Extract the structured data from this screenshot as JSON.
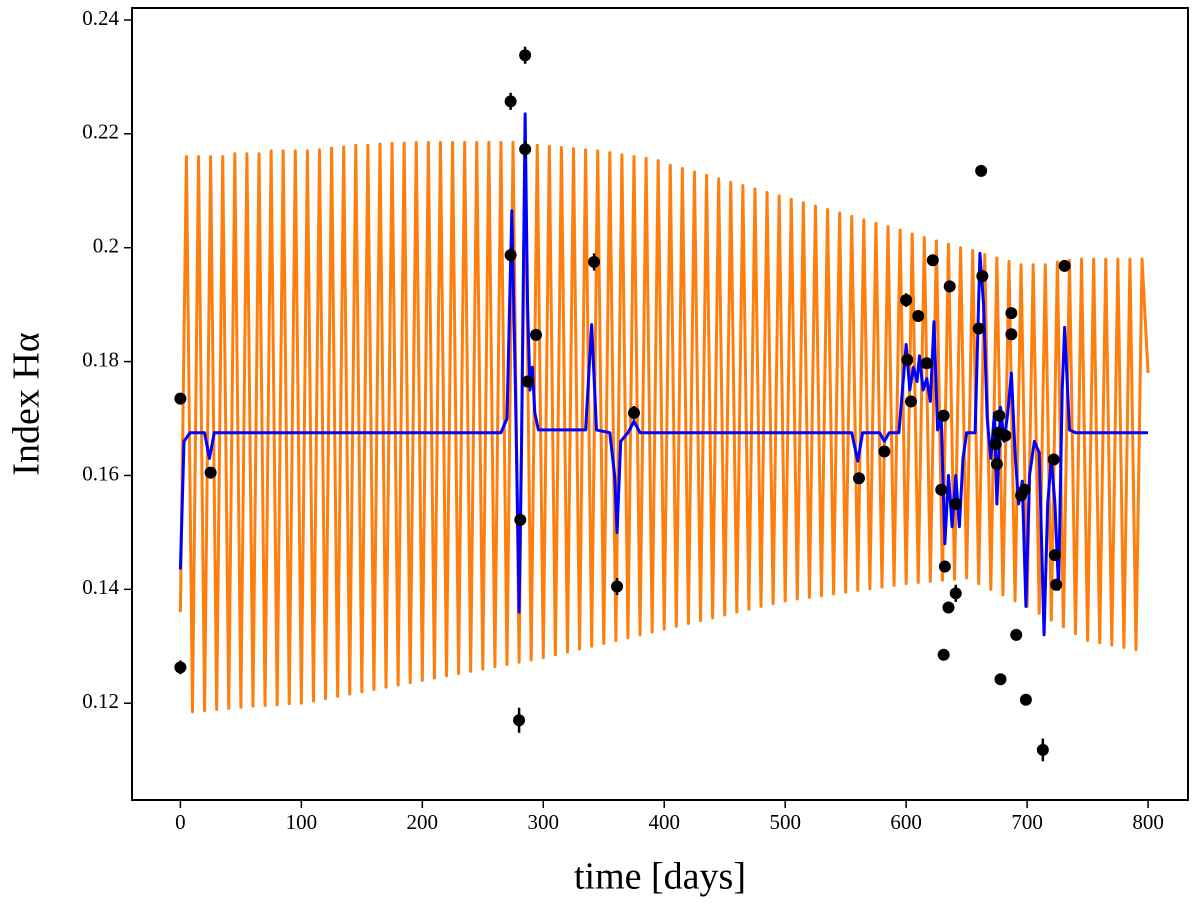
{
  "chart_data": {
    "type": "line",
    "xlabel": "time [days]",
    "ylabel": "Index Hα",
    "xlim": [
      -40,
      833
    ],
    "ylim": [
      0.103,
      0.2421
    ],
    "xticks": [
      0,
      100,
      200,
      300,
      400,
      500,
      600,
      700,
      800
    ],
    "yticks": [
      0.12,
      0.14,
      0.16,
      0.18,
      0.2,
      0.22,
      0.24
    ],
    "series": [
      {
        "color": "#ff7f0e",
        "style": "line",
        "x": [
          0,
          5,
          10,
          15,
          20,
          25,
          30,
          35,
          40,
          45,
          50,
          55,
          60,
          65,
          70,
          75,
          80,
          85,
          90,
          95,
          100,
          105,
          110,
          115,
          120,
          125,
          130,
          135,
          140,
          145,
          150,
          155,
          160,
          165,
          170,
          175,
          180,
          185,
          190,
          195,
          200,
          205,
          210,
          215,
          220,
          225,
          230,
          235,
          240,
          245,
          250,
          255,
          260,
          265,
          270,
          275,
          280,
          285,
          290,
          295,
          300,
          305,
          310,
          315,
          320,
          325,
          330,
          335,
          340,
          345,
          350,
          355,
          360,
          365,
          370,
          375,
          380,
          385,
          390,
          395,
          400,
          405,
          410,
          415,
          420,
          425,
          430,
          435,
          440,
          445,
          450,
          455,
          460,
          465,
          470,
          475,
          480,
          485,
          490,
          495,
          500,
          505,
          510,
          515,
          520,
          525,
          530,
          535,
          540,
          545,
          550,
          555,
          560,
          565,
          570,
          575,
          580,
          585,
          590,
          595,
          600,
          605,
          610,
          615,
          620,
          625,
          630,
          635,
          640,
          645,
          650,
          655,
          660,
          665,
          670,
          675,
          680,
          685,
          690,
          695,
          700,
          705,
          710,
          715,
          720,
          725,
          730,
          735,
          740,
          745,
          750,
          755,
          760,
          765,
          770,
          775,
          780,
          785,
          790,
          795,
          800
        ],
        "values": [
          0.136,
          0.216,
          0.1185,
          0.216,
          0.1187,
          0.216,
          0.1189,
          0.216,
          0.1191,
          0.2165,
          0.1193,
          0.2165,
          0.1195,
          0.2165,
          0.1196,
          0.217,
          0.1197,
          0.217,
          0.1199,
          0.217,
          0.12,
          0.217,
          0.1204,
          0.2172,
          0.1208,
          0.2175,
          0.1212,
          0.2177,
          0.1216,
          0.218,
          0.122,
          0.218,
          0.1224,
          0.2182,
          0.1228,
          0.2183,
          0.1232,
          0.2184,
          0.1236,
          0.2185,
          0.124,
          0.2185,
          0.1244,
          0.2185,
          0.1248,
          0.2185,
          0.1252,
          0.2185,
          0.1256,
          0.2185,
          0.126,
          0.2185,
          0.1264,
          0.2185,
          0.1268,
          0.2185,
          0.1272,
          0.2183,
          0.1276,
          0.218,
          0.128,
          0.2178,
          0.1285,
          0.2176,
          0.129,
          0.2174,
          0.1295,
          0.2172,
          0.13,
          0.217,
          0.1305,
          0.2167,
          0.131,
          0.2163,
          0.1315,
          0.216,
          0.132,
          0.2157,
          0.1325,
          0.2153,
          0.133,
          0.2145,
          0.1335,
          0.2139,
          0.134,
          0.2133,
          0.1345,
          0.2127,
          0.135,
          0.2121,
          0.1355,
          0.2115,
          0.136,
          0.2109,
          0.1365,
          0.2103,
          0.137,
          0.2097,
          0.1375,
          0.2091,
          0.138,
          0.2085,
          0.1383,
          0.2079,
          0.1386,
          0.2073,
          0.1389,
          0.2067,
          0.1392,
          0.2061,
          0.1395,
          0.2055,
          0.1398,
          0.2049,
          0.1401,
          0.2043,
          0.1404,
          0.2037,
          0.1407,
          0.2031,
          0.141,
          0.2024,
          0.1412,
          0.2018,
          0.1414,
          0.2012,
          0.1416,
          0.2006,
          0.1418,
          0.2,
          0.142,
          0.1995,
          0.141,
          0.1988,
          0.14,
          0.1982,
          0.139,
          0.1976,
          0.138,
          0.197,
          0.137,
          0.197,
          0.1358,
          0.197,
          0.1346,
          0.1975,
          0.1334,
          0.1978,
          0.1322,
          0.198,
          0.131,
          0.198,
          0.1306,
          0.198,
          0.1302,
          0.198,
          0.1298,
          0.198,
          0.1294,
          0.198,
          0.178
        ]
      },
      {
        "color": "#0000ff",
        "style": "line",
        "x": [
          0,
          3,
          8,
          20,
          24,
          28,
          265,
          270,
          274,
          277,
          279,
          280,
          282,
          285,
          287,
          289,
          291,
          293,
          296,
          335,
          340,
          344,
          355,
          359,
          361,
          364,
          370,
          375,
          380,
          555,
          560,
          564,
          578,
          582,
          586,
          594,
          600,
          603,
          606,
          609,
          611,
          614,
          617,
          620,
          623,
          626,
          629,
          632,
          635,
          638,
          641,
          644,
          647,
          650,
          657,
          661,
          664,
          667,
          670,
          673,
          675,
          678,
          681,
          684,
          687,
          690,
          693,
          696,
          699,
          702,
          706,
          710,
          714,
          717,
          720,
          723,
          726,
          729,
          731,
          735,
          740,
          800
        ],
        "values": [
          0.1435,
          0.166,
          0.1675,
          0.1675,
          0.163,
          0.1675,
          0.1675,
          0.17,
          0.2065,
          0.175,
          0.15,
          0.136,
          0.165,
          0.2235,
          0.19,
          0.175,
          0.179,
          0.171,
          0.168,
          0.168,
          0.1865,
          0.168,
          0.1675,
          0.16,
          0.15,
          0.166,
          0.1675,
          0.1695,
          0.1675,
          0.1675,
          0.1625,
          0.1675,
          0.1675,
          0.166,
          0.1675,
          0.1675,
          0.183,
          0.175,
          0.179,
          0.1765,
          0.181,
          0.175,
          0.177,
          0.173,
          0.187,
          0.168,
          0.17,
          0.148,
          0.16,
          0.151,
          0.16,
          0.151,
          0.163,
          0.1675,
          0.1675,
          0.199,
          0.19,
          0.17,
          0.163,
          0.171,
          0.155,
          0.172,
          0.166,
          0.171,
          0.178,
          0.164,
          0.155,
          0.159,
          0.137,
          0.16,
          0.166,
          0.164,
          0.132,
          0.155,
          0.163,
          0.155,
          0.14,
          0.175,
          0.186,
          0.168,
          0.1675,
          0.1675
        ]
      },
      {
        "color": "#000000",
        "style": "errorbar",
        "x": [
          0,
          0,
          25,
          273,
          273,
          280,
          281,
          285,
          285,
          287,
          294,
          342,
          361,
          375,
          561,
          582,
          600,
          601,
          604,
          610,
          617,
          622,
          629,
          631,
          632,
          631,
          635,
          636,
          641,
          641,
          660,
          662,
          663,
          674,
          675,
          676,
          677,
          678,
          682,
          687,
          687,
          691,
          695,
          698,
          699,
          713,
          722,
          723,
          724,
          731
        ],
        "values": [
          0.1735,
          0.1263,
          0.1605,
          0.1987,
          0.2257,
          0.117,
          0.1522,
          0.2338,
          0.2173,
          0.1765,
          0.1847,
          0.1975,
          0.1405,
          0.171,
          0.1595,
          0.1642,
          0.1908,
          0.1803,
          0.173,
          0.188,
          0.1797,
          0.1978,
          0.1575,
          0.1705,
          0.144,
          0.1285,
          0.1368,
          0.1932,
          0.155,
          0.1393,
          0.1858,
          0.2135,
          0.195,
          0.1655,
          0.162,
          0.1675,
          0.1705,
          0.1242,
          0.167,
          0.1885,
          0.1848,
          0.132,
          0.1565,
          0.1575,
          0.1206,
          0.1118,
          0.1628,
          0.146,
          0.1408,
          0.1968
        ],
        "errors": [
          0.001,
          0.0012,
          0.001,
          0.0012,
          0.0015,
          0.0022,
          0.001,
          0.0015,
          0.0015,
          0.001,
          0.001,
          0.0015,
          0.0015,
          0.0012,
          0.001,
          0.001,
          0.0012,
          0.001,
          0.001,
          0.001,
          0.001,
          0.001,
          0.001,
          0.001,
          0.001,
          0.001,
          0.001,
          0.001,
          0.001,
          0.0015,
          0.001,
          0.001,
          0.001,
          0.001,
          0.001,
          0.001,
          0.001,
          0.001,
          0.001,
          0.001,
          0.001,
          0.001,
          0.001,
          0.001,
          0.001,
          0.002,
          0.001,
          0.001,
          0.001,
          0.001
        ]
      }
    ]
  }
}
